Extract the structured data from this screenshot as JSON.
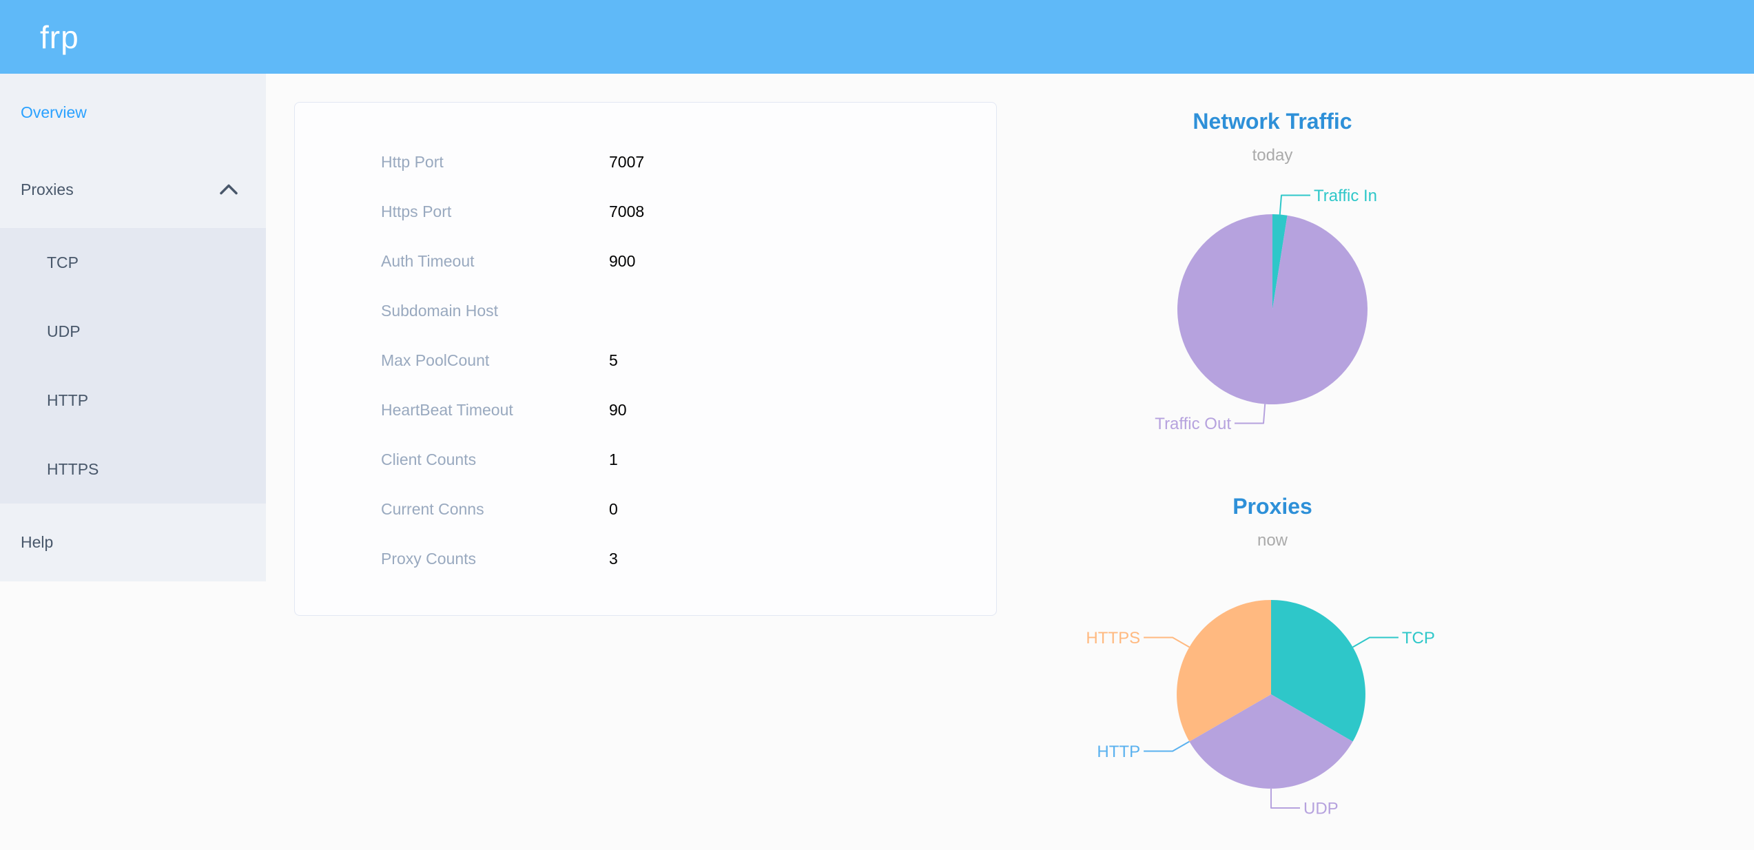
{
  "header": {
    "logo": "frp"
  },
  "sidebar": {
    "overview": "Overview",
    "proxies": "Proxies",
    "proxy_types": [
      "TCP",
      "UDP",
      "HTTP",
      "HTTPS"
    ],
    "help": "Help",
    "active_item": "Overview"
  },
  "overview_card": {
    "rows": [
      {
        "label": "Http Port",
        "value": "7007"
      },
      {
        "label": "Https Port",
        "value": "7008"
      },
      {
        "label": "Auth Timeout",
        "value": "900"
      },
      {
        "label": "Subdomain Host",
        "value": ""
      },
      {
        "label": "Max PoolCount",
        "value": "5"
      },
      {
        "label": "HeartBeat Timeout",
        "value": "90"
      },
      {
        "label": "Client Counts",
        "value": "1"
      },
      {
        "label": "Current Conns",
        "value": "0"
      },
      {
        "label": "Proxy Counts",
        "value": "3"
      }
    ]
  },
  "chart_data": [
    {
      "type": "pie",
      "title": "Network Traffic",
      "subtitle": "today",
      "legend_position": "none",
      "label_position": "outside",
      "start": "top",
      "direction": "clockwise",
      "value_unit": "percent of total traffic (estimated from slice angles; byte values not shown on screen)",
      "slices": [
        {
          "label": "Traffic In",
          "value": 2.5,
          "color": "#2ec7c9"
        },
        {
          "label": "Traffic Out",
          "value": 97.5,
          "color": "#b6a2de"
        }
      ]
    },
    {
      "type": "pie",
      "title": "Proxies",
      "subtitle": "now",
      "legend_position": "none",
      "label_position": "outside",
      "start": "top",
      "direction": "clockwise",
      "value_unit": "proxy count (total = 3)",
      "slices": [
        {
          "label": "TCP",
          "value": 1,
          "color": "#2ec7c9"
        },
        {
          "label": "UDP",
          "value": 1,
          "color": "#b6a2de"
        },
        {
          "label": "HTTP",
          "value": 0,
          "color": "#5ab1ef"
        },
        {
          "label": "HTTPS",
          "value": 1,
          "color": "#ffb980"
        }
      ]
    }
  ],
  "colors": {
    "header_bg": "#5fb9f8",
    "sidebar_bg": "#eef1f6",
    "submenu_bg": "#e4e8f1",
    "sidebar_text": "#48576a",
    "active_menu_text": "#2aa1ff",
    "card_label": "#99a9bf",
    "card_value": "#000000",
    "chart_title": "#2e90d8",
    "chart_subtitle": "#aaaaaa"
  }
}
